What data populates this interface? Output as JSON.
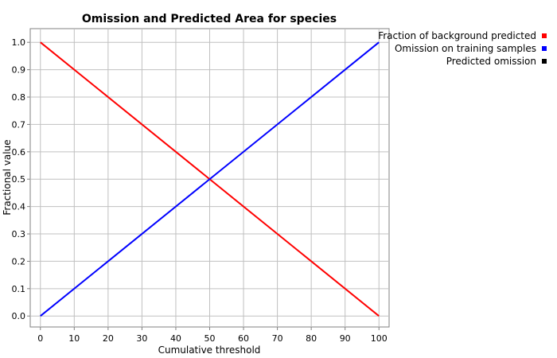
{
  "chart_data": {
    "type": "line",
    "title": "Omission and Predicted Area for species",
    "xlabel": "Cumulative threshold",
    "ylabel": "Fractional value",
    "xlim": [
      -3,
      103
    ],
    "ylim": [
      -0.04,
      1.05
    ],
    "x_ticks": [
      0,
      10,
      20,
      30,
      40,
      50,
      60,
      70,
      80,
      90,
      100
    ],
    "y_ticks": [
      0.0,
      0.1,
      0.2,
      0.3,
      0.4,
      0.5,
      0.6,
      0.7,
      0.8,
      0.9,
      1.0
    ],
    "x_tick_labels": [
      "0",
      "10",
      "20",
      "30",
      "40",
      "50",
      "60",
      "70",
      "80",
      "90",
      "100"
    ],
    "y_tick_labels": [
      "0.0",
      "0.1",
      "0.2",
      "0.3",
      "0.4",
      "0.5",
      "0.6",
      "0.7",
      "0.8",
      "0.9",
      "1.0"
    ],
    "grid": true,
    "legend_position": "right",
    "series": [
      {
        "name": "Fraction of background predicted",
        "color": "#ff0000",
        "x": [
          0,
          100
        ],
        "y": [
          1.0,
          0.0
        ]
      },
      {
        "name": "Omission on training samples",
        "color": "#0000ff",
        "x": [
          0,
          100
        ],
        "y": [
          0.0,
          1.0
        ]
      },
      {
        "name": "Predicted omission",
        "color": "#000000",
        "x": [],
        "y": []
      }
    ]
  }
}
